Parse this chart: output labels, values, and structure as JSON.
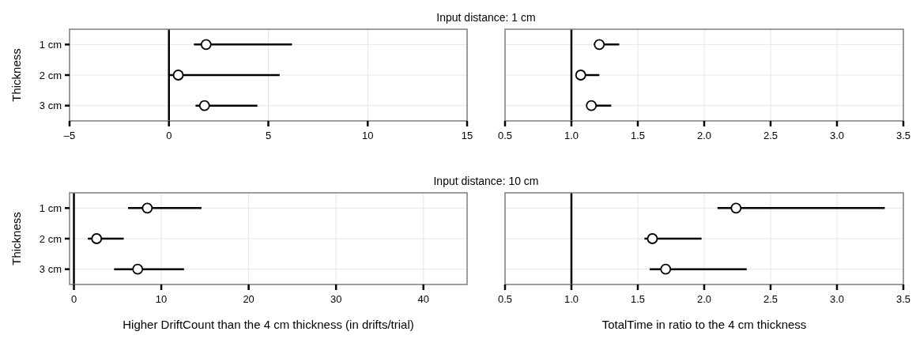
{
  "chart_data": [
    {
      "type": "scatter",
      "orientation": "horizontal",
      "title": "Input distance: 1 cm",
      "ylabel": "Thickness",
      "categories": [
        "1 cm",
        "2 cm",
        "3 cm"
      ],
      "values": [
        1.87,
        0.47,
        1.79
      ],
      "errors": [
        [
          1.26,
          6.19
        ],
        [
          0.0,
          5.57
        ],
        [
          1.34,
          4.45
        ]
      ],
      "color": "#000000",
      "marker": "circle",
      "xlim": [
        -5,
        15
      ],
      "xticks": [
        {
          "value": -5,
          "label": "–5"
        },
        0,
        5,
        10,
        15
      ],
      "grid": true,
      "ref_lines": [
        {
          "axis": "x",
          "value": 0,
          "color": "#000000"
        }
      ]
    },
    {
      "type": "scatter",
      "orientation": "horizontal",
      "categories": [
        null,
        null,
        null
      ],
      "values": [
        1.21,
        1.07,
        1.15
      ],
      "errors": [
        [
          1.17,
          1.36
        ],
        [
          1.04,
          1.21
        ],
        [
          1.12,
          1.3
        ]
      ],
      "color": "#000000",
      "marker": "circle",
      "xlim": [
        0.5,
        3.5
      ],
      "xticks": [
        0.5,
        {
          "value": 1,
          "label": "1.0"
        },
        1.5,
        {
          "value": 2,
          "label": "2.0"
        },
        2.5,
        {
          "value": 3,
          "label": "3.0"
        },
        3.5
      ],
      "grid": true,
      "tick_labels": "x",
      "ref_lines": [
        {
          "axis": "x",
          "value": 1,
          "color": "#000000"
        }
      ]
    },
    {
      "type": "scatter",
      "orientation": "horizontal",
      "title": "Input distance: 10 cm",
      "ylabel": "Thickness",
      "xlabel": "Higher DriftCount than the 4 cm thickness (in drifts/trial)",
      "categories": [
        "1 cm",
        "2 cm",
        "3 cm"
      ],
      "values": [
        8.4,
        2.6,
        7.3
      ],
      "errors": [
        [
          6.2,
          14.6
        ],
        [
          1.6,
          5.7
        ],
        [
          4.6,
          12.6
        ]
      ],
      "color": "#000000",
      "marker": "circle",
      "xlim": [
        -0.5,
        45
      ],
      "xticks": [
        0,
        10,
        20,
        30,
        40
      ],
      "grid": true,
      "ref_lines": [
        {
          "axis": "x",
          "value": 0,
          "color": "#000000"
        }
      ]
    },
    {
      "type": "scatter",
      "orientation": "horizontal",
      "xlabel": "TotalTime in ratio to the 4 cm thickness",
      "categories": [
        null,
        null,
        null
      ],
      "values": [
        2.24,
        1.61,
        1.71
      ],
      "errors": [
        [
          2.1,
          3.36
        ],
        [
          1.55,
          1.98
        ],
        [
          1.59,
          2.32
        ]
      ],
      "color": "#000000",
      "marker": "circle",
      "xlim": [
        0.5,
        3.5
      ],
      "xticks": [
        0.5,
        {
          "value": 1,
          "label": "1.0"
        },
        1.5,
        {
          "value": 2,
          "label": "2.0"
        },
        2.5,
        {
          "value": 3,
          "label": "3.0"
        },
        3.5
      ],
      "grid": true,
      "tick_labels": "x",
      "ref_lines": [
        {
          "axis": "x",
          "value": 1,
          "color": "#000000"
        }
      ]
    }
  ]
}
